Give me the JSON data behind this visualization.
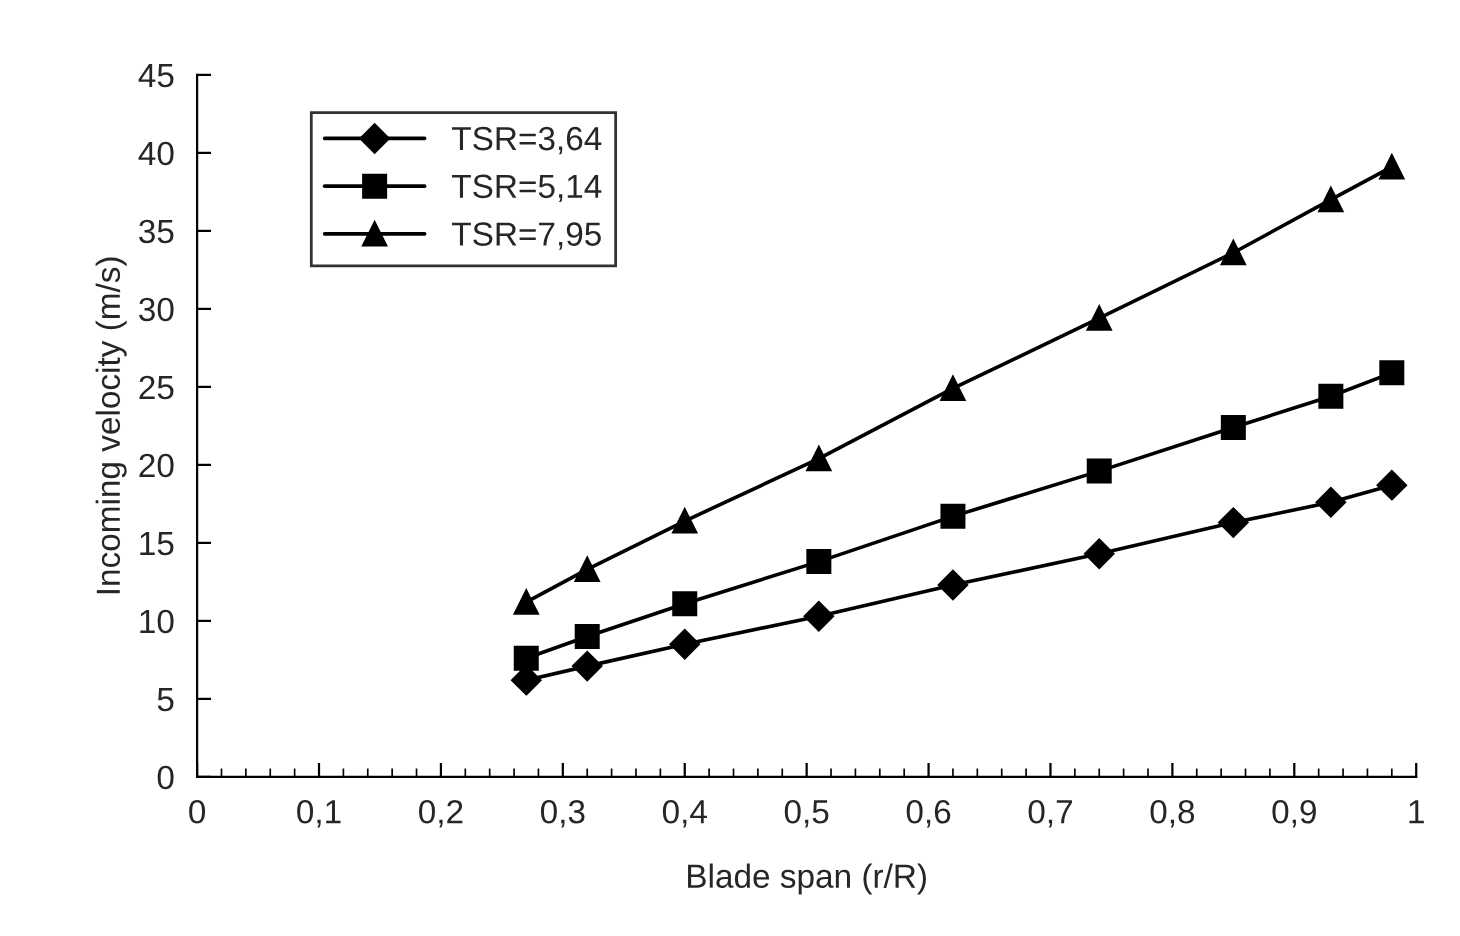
{
  "chart_data": {
    "type": "line",
    "xlabel": "Blade span (r/R)",
    "ylabel": "Incoming velocity (m/s)",
    "x": [
      0.27,
      0.32,
      0.4,
      0.51,
      0.62,
      0.74,
      0.85,
      0.93,
      0.98
    ],
    "series": [
      {
        "name": "TSR=3,64",
        "color": "#000000",
        "marker": "diamond",
        "values": [
          6.2,
          7.1,
          8.5,
          10.3,
          12.3,
          14.3,
          16.3,
          17.6,
          18.7
        ]
      },
      {
        "name": "TSR=5,14",
        "color": "#000000",
        "marker": "square",
        "values": [
          7.6,
          9.0,
          11.1,
          13.8,
          16.7,
          19.6,
          22.4,
          24.4,
          25.9
        ]
      },
      {
        "name": "TSR=7,95",
        "color": "#000000",
        "marker": "triangle",
        "values": [
          11.2,
          13.3,
          16.4,
          20.4,
          24.9,
          29.4,
          33.6,
          37.0,
          39.1
        ]
      }
    ],
    "xlim": [
      0,
      1
    ],
    "ylim": [
      0,
      45
    ],
    "xticks": [
      0,
      {
        "value": 0.1,
        "label": "0,1"
      },
      {
        "value": 0.2,
        "label": "0,2"
      },
      {
        "value": 0.3,
        "label": "0,3"
      },
      {
        "value": 0.4,
        "label": "0,4"
      },
      {
        "value": 0.5,
        "label": "0,5"
      },
      {
        "value": 0.6,
        "label": "0,6"
      },
      {
        "value": 0.7,
        "label": "0,7"
      },
      {
        "value": 0.8,
        "label": "0,8"
      },
      {
        "value": 0.9,
        "label": "0,9"
      },
      1
    ],
    "yticks": [
      0,
      5,
      10,
      15,
      20,
      25,
      30,
      35,
      40,
      45
    ],
    "grid": false,
    "legend": "top left",
    "line_style": "solid"
  }
}
